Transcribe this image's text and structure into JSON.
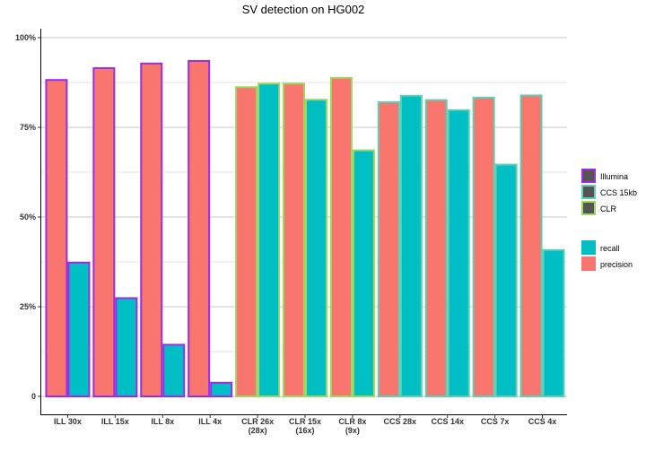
{
  "chart_data": {
    "type": "bar",
    "title": "SV detection on HG002",
    "categories": [
      [
        "ILL 30x"
      ],
      [
        "ILL 15x"
      ],
      [
        "ILL 8x"
      ],
      [
        "ILL 4x"
      ],
      [
        "CLR 26x",
        "(28x)"
      ],
      [
        "CLR 15x",
        "(16x)"
      ],
      [
        "CLR 8x",
        "(9x)"
      ],
      [
        "CCS 28x"
      ],
      [
        "CCS 14x"
      ],
      [
        "CCS 7x"
      ],
      [
        "CCS 4x"
      ]
    ],
    "platform": [
      "Illumina",
      "Illumina",
      "Illumina",
      "Illumina",
      "CLR",
      "CLR",
      "CLR",
      "CCS 15kb",
      "CCS 15kb",
      "CCS 15kb",
      "CCS 15kb"
    ],
    "series": [
      {
        "name": "precision",
        "color": "#F8766D",
        "values": [
          88.2,
          91.5,
          92.8,
          93.5,
          86.2,
          87.2,
          88.8,
          82.0,
          82.6,
          83.3,
          83.9
        ]
      },
      {
        "name": "recall",
        "color": "#00BFC4",
        "values": [
          37.3,
          27.4,
          14.4,
          3.8,
          87.2,
          82.7,
          68.6,
          83.8,
          79.8,
          64.6,
          40.8
        ]
      }
    ],
    "ylim": [
      0,
      100
    ],
    "yticks": [
      0,
      25,
      50,
      75,
      100
    ],
    "ytick_labels": [
      "0",
      "25%",
      "50%",
      "75%",
      "100%"
    ],
    "grid": true,
    "legend": {
      "placement": "right",
      "outline_title": "",
      "outline_items": [
        {
          "label": "Illumina",
          "color": "#9A2EE0"
        },
        {
          "label": "CCS 15kb",
          "color": "#5ECFB3"
        },
        {
          "label": "CLR",
          "color": "#9FD660"
        }
      ],
      "fill_items": [
        {
          "label": "recall",
          "color": "#00BFC4"
        },
        {
          "label": "precision",
          "color": "#F8766D"
        }
      ]
    }
  }
}
